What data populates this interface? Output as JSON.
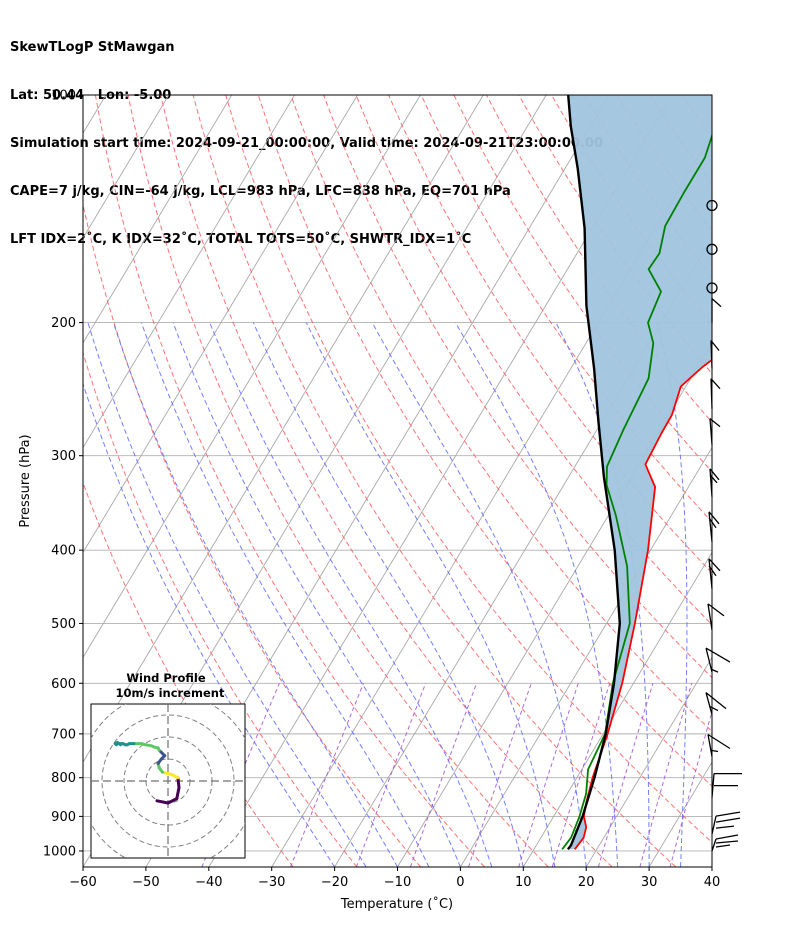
{
  "header": {
    "line1": "SkewTLogP StMawgan",
    "line2": "Lat: 50.44   Lon: -5.00",
    "line3": "Simulation start time: 2024-09-21_00:00:00, Valid time: 2024-09-21T23:00:00.00",
    "line4": "CAPE=7 j/kg, CIN=-64 j/kg, LCL=983 hPa, LFC=838 hPa, EQ=701 hPa",
    "line5": "LFT IDX=2˚C, K IDX=32˚C, TOTAL TOTS=50˚C, SHWTR_IDX=1˚C"
  },
  "chart_data": {
    "type": "line",
    "subtype": "skew-t log-p",
    "xlabel": "Temperature (˚C)",
    "ylabel": "Pressure (hPa)",
    "xlim": [
      -60,
      40
    ],
    "ylim": [
      1050,
      100
    ],
    "yscale": "log",
    "x_ticks": [
      -60,
      -50,
      -40,
      -30,
      -20,
      -10,
      0,
      10,
      20,
      30,
      40
    ],
    "x_tick_labels": [
      "−60",
      "−50",
      "−40",
      "−30",
      "−20",
      "−10",
      "0",
      "10",
      "20",
      "30",
      "40"
    ],
    "y_ticks": [
      1000,
      900,
      800,
      700,
      600,
      500,
      400,
      300,
      200,
      100
    ],
    "y_tick_labels": [
      "1000",
      "900",
      "800",
      "700",
      "600",
      "500",
      "400",
      "300",
      "200",
      "100"
    ],
    "grid": true,
    "series": [
      {
        "role": "temperature",
        "color": "#ff0000",
        "points": [
          [
            16.5,
            995
          ],
          [
            16.8,
            960
          ],
          [
            16.2,
            930
          ],
          [
            14.8,
            900
          ],
          [
            13.8,
            860
          ],
          [
            12.5,
            800
          ],
          [
            10.7,
            700
          ],
          [
            8.2,
            600
          ],
          [
            4.5,
            500
          ],
          [
            -0.4,
            400
          ],
          [
            -5.3,
            330
          ],
          [
            -9,
            308
          ],
          [
            -9.4,
            280
          ],
          [
            -9.5,
            265
          ],
          [
            -10.8,
            243
          ],
          [
            -9.2,
            229
          ],
          [
            -6,
            210
          ],
          [
            -3,
            197
          ],
          [
            -3.3,
            185
          ],
          [
            -5.3,
            170
          ],
          [
            -7.7,
            156
          ],
          [
            -10.3,
            140
          ],
          [
            -12.3,
            128
          ],
          [
            -12.8,
            121
          ],
          [
            -13.6,
            110
          ],
          [
            -14.8,
            100
          ]
        ]
      },
      {
        "role": "dewpoint",
        "color": "#008000",
        "points": [
          [
            14.5,
            995
          ],
          [
            14.8,
            960
          ],
          [
            14.1,
            900
          ],
          [
            13,
            840
          ],
          [
            11,
            780
          ],
          [
            10.3,
            700
          ],
          [
            6.7,
            600
          ],
          [
            3.7,
            500
          ],
          [
            -2.2,
            420
          ],
          [
            -8.8,
            360
          ],
          [
            -13.2,
            328
          ],
          [
            -14.9,
            310
          ],
          [
            -15.8,
            277
          ],
          [
            -16.7,
            237
          ],
          [
            -19.3,
            213
          ],
          [
            -22.1,
            200
          ],
          [
            -23,
            182
          ],
          [
            -27.1,
            170
          ],
          [
            -26.9,
            162
          ],
          [
            -28.6,
            149
          ],
          [
            -28.8,
            134
          ],
          [
            -28.8,
            121
          ],
          [
            -29.9,
            112
          ],
          [
            -31.7,
            100
          ]
        ]
      },
      {
        "role": "parcel",
        "color": "#000000",
        "points": [
          [
            15.4,
            995
          ],
          [
            15.5,
            983
          ],
          [
            14.6,
            900
          ],
          [
            12.8,
            800
          ],
          [
            10.4,
            700
          ],
          [
            6.9,
            600
          ],
          [
            2.1,
            500
          ],
          [
            -5.7,
            400
          ],
          [
            -14.4,
            320
          ],
          [
            -20.6,
            270
          ],
          [
            -26.3,
            230
          ],
          [
            -33.5,
            190
          ],
          [
            -41.2,
            150
          ],
          [
            -48,
            125
          ],
          [
            -53.1,
            110
          ],
          [
            -56.5,
            100
          ]
        ]
      }
    ],
    "shading": {
      "region": "CAPE / CIN between parcel and environment",
      "color": "#a0c4de"
    },
    "wind_barbs": [
      {
        "p": 140
      },
      {
        "p": 160
      },
      {
        "p": 180
      },
      {
        "p": 200
      },
      {
        "p": 230
      },
      {
        "p": 260
      },
      {
        "p": 290
      },
      {
        "p": 340
      },
      {
        "p": 390
      },
      {
        "p": 450
      },
      {
        "p": 510
      },
      {
        "p": 580
      },
      {
        "p": 660
      },
      {
        "p": 750
      },
      {
        "p": 850
      },
      {
        "p": 950
      },
      {
        "p": 1000
      }
    ],
    "hodograph": {
      "title": "Wind Profile",
      "subtitle": "10m/s increment",
      "points": [
        [
          -1,
          -1.8
        ],
        [
          0,
          -2
        ],
        [
          0.8,
          -1.6
        ],
        [
          1,
          -0.6
        ],
        [
          0.9,
          0.3
        ],
        [
          0.3,
          0.6
        ],
        [
          -0.5,
          0.8
        ],
        [
          -0.8,
          1.2
        ],
        [
          -0.9,
          1.6
        ],
        [
          -0.6,
          2
        ],
        [
          -0.3,
          2.3
        ],
        [
          -0.5,
          2.5
        ],
        [
          -0.8,
          2.8
        ],
        [
          -0.9,
          3
        ],
        [
          -1.3,
          3.1
        ],
        [
          -1.5,
          3.2
        ],
        [
          -2.1,
          3.3
        ],
        [
          -2.4,
          3.4
        ],
        [
          -3.1,
          3.4
        ],
        [
          -3.5,
          3.4
        ],
        [
          -3.7,
          3.3
        ],
        [
          -3.9,
          3.3
        ],
        [
          -4.1,
          3.4
        ],
        [
          -4.6,
          3.4
        ],
        [
          -4.7,
          3.3
        ],
        [
          -4.8,
          3.4
        ],
        [
          -4.6,
          3.5
        ],
        [
          -4.3,
          3.3
        ]
      ]
    }
  }
}
